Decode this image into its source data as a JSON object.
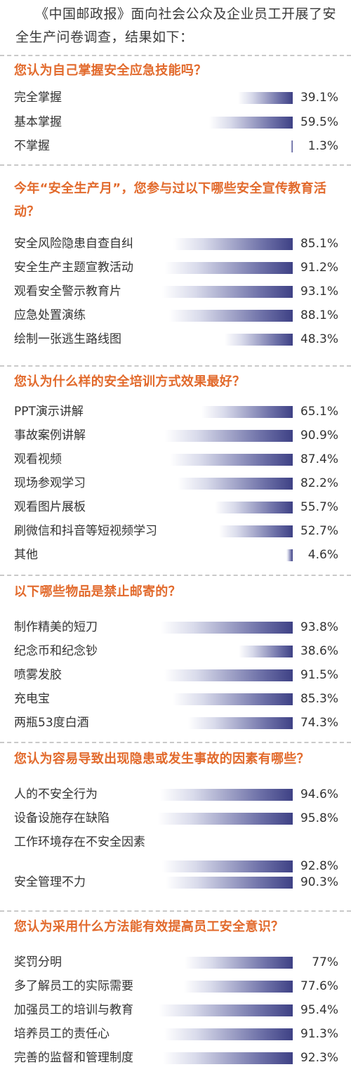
{
  "intro": "《中国邮政报》面向社会公众及企业员工开展了安全生产问卷调查，结果如下：",
  "chart_data": [
    {
      "type": "bar",
      "title": "您认为自己掌握安全应急技能吗？",
      "categories": [
        "完全掌握",
        "基本掌握",
        "不掌握"
      ],
      "values": [
        39.1,
        59.5,
        1.3
      ],
      "labels": [
        "39.1%",
        "59.5%",
        "1.3%"
      ],
      "unit": "%"
    },
    {
      "type": "bar",
      "title": "今年“安全生产月”，您参与过以下哪些安全宣传教育活动？",
      "categories": [
        "安全风险隐患自查自纠",
        "安全生产主题宣教活动",
        "观看安全警示教育片",
        "应急处置演练",
        "绘制一张逃生路线图"
      ],
      "values": [
        85.1,
        91.2,
        93.1,
        88.1,
        48.3
      ],
      "labels": [
        "85.1%",
        "91.2%",
        "93.1%",
        "88.1%",
        "48.3%"
      ],
      "unit": "%"
    },
    {
      "type": "bar",
      "title": "您认为什么样的安全培训方式效果最好？",
      "categories": [
        "PPT演示讲解",
        "事故案例讲解",
        "观看视频",
        "现场参观学习",
        "观看图片展板",
        "刷微信和抖音等短视频学习",
        "其他"
      ],
      "values": [
        65.1,
        90.9,
        87.4,
        82.2,
        55.7,
        52.7,
        4.6
      ],
      "labels": [
        "65.1%",
        "90.9%",
        "87.4%",
        "82.2%",
        "55.7%",
        "52.7%",
        "4.6%"
      ],
      "unit": "%"
    },
    {
      "type": "bar",
      "title": "以下哪些物品是禁止邮寄的？",
      "categories": [
        "制作精美的短刀",
        "纪念币和纪念钞",
        "喷雾发胶",
        "充电宝",
        "两瓶53度白酒"
      ],
      "values": [
        93.8,
        38.6,
        91.5,
        85.3,
        74.3
      ],
      "labels": [
        "93.8%",
        "38.6%",
        "91.5%",
        "85.3%",
        "74.3%"
      ],
      "unit": "%"
    },
    {
      "type": "bar",
      "title": "您认为容易导致出现隐患或发生事故的因素有哪些？",
      "categories": [
        "人的不安全行为",
        "设备设施存在缺陷",
        "工作环境存在不安全因素",
        "安全管理不力"
      ],
      "values": [
        94.6,
        95.8,
        92.8,
        90.3
      ],
      "labels": [
        "94.6%",
        "95.8%",
        "92.8%",
        "90.3%"
      ],
      "unit": "%"
    },
    {
      "type": "bar",
      "title": "您认为采用什么方法能有效提高员工安全意识？",
      "categories": [
        "奖罚分明",
        "多了解员工的实际需要",
        "加强员工的培训与教育",
        "培养员工的责任心",
        "完善的监督和管理制度"
      ],
      "values": [
        77,
        77.6,
        95.4,
        91.3,
        92.3
      ],
      "labels": [
        "77%",
        "77.6%",
        "95.4%",
        "91.3%",
        "92.3%"
      ],
      "unit": "%"
    }
  ]
}
